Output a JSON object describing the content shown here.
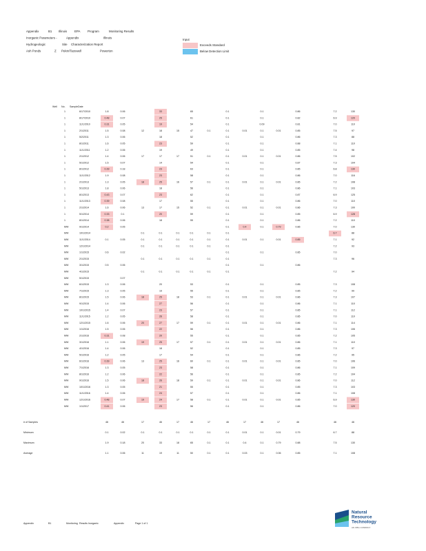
{
  "header": {
    "lines": [
      [
        "Appendix",
        "B1",
        "Illinois",
        "EPA",
        "Program",
        "Monitoring Results"
      ],
      [
        "Inorganic Parameters -",
        "Appendix",
        "Illinois"
      ],
      [
        "Hydrogeologic",
        "Site",
        "Characterization Report"
      ],
      [
        "Ash Ponds",
        "Z",
        "Pekin/Tazewell",
        "Powerton"
      ]
    ],
    "legend": {
      "title": "Input",
      "items": [
        {
          "color": "#f7c6c7",
          "label": "Exceeds Standard"
        },
        {
          "color": "#6cc3ee",
          "label": "Below Detection Limit"
        }
      ]
    }
  },
  "table": {
    "columns": [
      "Well",
      "No.",
      "Sample",
      "Date"
    ],
    "rows": [
      {
        "cells": [
          "1",
          "6/17/2010",
          "1.8",
          "0.06",
          null,
          "33",
          null,
          "65",
          null,
          "0.1",
          null,
          "0.1",
          null,
          "0.86",
          "7.2",
          "130"
        ],
        "hl": [
          5
        ]
      },
      {
        "cells": [
          "1",
          "8/17/2010",
          "0.48",
          "0.07",
          null,
          "25",
          null,
          "61",
          null,
          "0.1",
          null,
          "0.1",
          null,
          "0.82",
          "6.9",
          "120"
        ],
        "hl": [
          2,
          5,
          15
        ]
      },
      {
        "cells": [
          "1",
          "11/1/2010",
          "0.31",
          "0.05",
          null,
          "19",
          null,
          "54",
          null,
          "0.1",
          null,
          "0.09",
          null,
          "0.81",
          "7.0",
          "110"
        ],
        "hl": [
          2,
          5
        ]
      },
      {
        "cells": [
          "1",
          "2/1/2011",
          "1.5",
          "0.08",
          "12",
          "18",
          "15",
          "47",
          "0.1",
          "0.1",
          "0.01",
          "0.1",
          "0.01",
          "0.85",
          "7.5",
          "97"
        ],
        "hl": []
      },
      {
        "cells": [
          "1",
          "5/2/2011",
          "1.3",
          "0.06",
          null,
          "18",
          null,
          "52",
          null,
          "0.1",
          null,
          "0.1",
          null,
          "0.86",
          "7.3",
          "88"
        ],
        "hl": []
      },
      {
        "cells": [
          "1",
          "8/1/2011",
          "1.6",
          "0.05",
          null,
          "23",
          null,
          "59",
          null,
          "0.1",
          null,
          "0.1",
          null,
          "0.88",
          "7.1",
          "110"
        ],
        "hl": [
          5
        ]
      },
      {
        "cells": [
          "1",
          "11/1/2011",
          "1.2",
          "0.06",
          null,
          "19",
          null,
          "49",
          null,
          "0.1",
          null,
          "0.1",
          null,
          "0.85",
          "7.4",
          "98"
        ],
        "hl": []
      },
      {
        "cells": [
          "1",
          "2/1/2012",
          "1.4",
          "0.06",
          "17",
          "17",
          "17",
          "51",
          "0.1",
          "0.1",
          "0.01",
          "0.1",
          "0.01",
          "0.86",
          "7.5",
          "102"
        ],
        "hl": []
      },
      {
        "cells": [
          "1",
          "5/1/2012",
          "1.5",
          "0.07",
          null,
          "14",
          null,
          "54",
          null,
          "0.1",
          null,
          "0.1",
          null,
          "0.87",
          "7.3",
          "104"
        ],
        "hl": []
      },
      {
        "cells": [
          "1",
          "8/1/2012",
          "0.39",
          "0.18",
          null,
          "23",
          null,
          "63",
          null,
          "0.1",
          null,
          "0.1",
          null,
          "0.85",
          "6.8",
          "130"
        ],
        "hl": [
          2,
          5,
          15
        ]
      },
      {
        "cells": [
          "1",
          "11/1/2012",
          "1.9",
          "0.08",
          null,
          "23",
          null,
          "58",
          null,
          "0.1",
          null,
          "0.1",
          null,
          "0.86",
          "7.0",
          "116"
        ],
        "hl": [
          5
        ]
      },
      {
        "cells": [
          "1",
          "2/1/2013",
          "1.3",
          "0.05",
          "18",
          "25",
          "16",
          "57",
          "0.1",
          "0.1",
          "0.01",
          "0.1",
          "0.01",
          "0.85",
          "7.2",
          "108"
        ],
        "hl": [
          4,
          5
        ]
      },
      {
        "cells": [
          "1",
          "5/1/2013",
          "1.8",
          "0.06",
          null,
          "18",
          null,
          "56",
          null,
          "0.1",
          null,
          "0.1",
          null,
          "0.86",
          "7.1",
          "103"
        ],
        "hl": []
      },
      {
        "cells": [
          "1",
          "8/1/2013",
          "0.43",
          "0.07",
          null,
          "23",
          null,
          "62",
          null,
          "0.1",
          null,
          "0.1",
          null,
          "0.87",
          "6.9",
          "125"
        ],
        "hl": [
          2,
          5
        ]
      },
      {
        "cells": [
          "1",
          "11/1/2013",
          "0.39",
          "0.08",
          null,
          "17",
          null,
          "55",
          null,
          "0.1",
          null,
          "0.1",
          null,
          "0.86",
          "7.0",
          "110"
        ],
        "hl": [
          2
        ]
      },
      {
        "cells": [
          "1",
          "2/1/2014",
          "1.6",
          "0.06",
          "13",
          "17",
          "15",
          "52",
          "0.1",
          "0.1",
          "0.01",
          "0.1",
          "0.01",
          "0.86",
          "7.3",
          "100"
        ],
        "hl": []
      },
      {
        "cells": [
          "1",
          "5/1/2014",
          "0.33",
          "0.1",
          null,
          "20",
          null,
          "59",
          null,
          "0.1",
          null,
          "0.1",
          null,
          "0.85",
          "6.9",
          "128"
        ],
        "hl": [
          2,
          5,
          15
        ]
      },
      {
        "cells": [
          "1",
          "8/1/2014",
          "0.38",
          "0.06",
          null,
          "18",
          null,
          "55",
          null,
          "0.1",
          null,
          "0.1",
          null,
          "0.86",
          "7.2",
          "110"
        ],
        "hl": [
          2
        ]
      },
      {
        "cells": [
          "MW",
          "9/1/2014",
          "0.2",
          "0.05",
          null,
          null,
          null,
          null,
          null,
          "0.1",
          "0.4",
          "0.1",
          "0.79",
          "0.86",
          "7.0",
          "130"
        ],
        "hl": [
          2,
          10,
          12
        ]
      },
      {
        "cells": [
          "MW",
          "10/1/2014",
          null,
          null,
          "0.1",
          "0.1",
          "0.1",
          "0.1",
          "0.1",
          "0.1",
          null,
          null,
          null,
          null,
          "6.7",
          "88"
        ],
        "hl": [
          14
        ]
      },
      {
        "cells": [
          "MW",
          "11/1/2014",
          "0.1",
          "0.05",
          "0.1",
          "0.1",
          "0.1",
          "0.1",
          "0.1",
          "0.1",
          "0.01",
          "0.1",
          "0.01",
          "0.85",
          "7.1",
          "92"
        ],
        "hl": [
          13
        ]
      },
      {
        "cells": [
          "MW",
          "12/1/2014",
          null,
          null,
          "0.1",
          "0.1",
          "0.1",
          "0.1",
          "0.1",
          "0.1",
          null,
          null,
          null,
          null,
          "7.2",
          "93"
        ],
        "hl": []
      },
      {
        "cells": [
          "MW",
          "1/1/2015",
          "0.6",
          "0.02",
          null,
          null,
          null,
          null,
          null,
          "0.1",
          null,
          "0.1",
          null,
          "0.85",
          "7.0",
          null
        ],
        "hl": []
      },
      {
        "cells": [
          "MW",
          "2/1/2015",
          null,
          null,
          "0.1",
          "0.1",
          "0.1",
          "0.1",
          "0.1",
          "0.1",
          null,
          null,
          null,
          null,
          "7.3",
          "96"
        ],
        "hl": []
      },
      {
        "cells": [
          "MW",
          "3/1/2015",
          "0.5",
          "0.06",
          null,
          null,
          null,
          null,
          null,
          "0.1",
          null,
          "0.1",
          null,
          "0.86",
          null,
          null
        ],
        "hl": []
      },
      {
        "cells": [
          "MW",
          "4/1/2015",
          null,
          null,
          "0.1",
          "0.1",
          "0.1",
          "0.1",
          "0.1",
          "0.1",
          null,
          null,
          null,
          null,
          "7.2",
          "94"
        ],
        "hl": []
      },
      {
        "cells": [
          "MW",
          "5/1/2015",
          null,
          "0.07",
          null,
          null,
          null,
          null,
          null,
          null,
          null,
          null,
          null,
          null,
          null,
          null
        ],
        "hl": []
      },
      {
        "cells": [
          "MW",
          "6/1/2015",
          "1.3",
          "0.06",
          null,
          "20",
          null,
          "53",
          null,
          "0.1",
          null,
          "0.1",
          null,
          "0.85",
          "7.3",
          "108"
        ],
        "hl": []
      },
      {
        "cells": [
          "MW",
          "7/1/2015",
          "1.3",
          "0.05",
          null,
          "19",
          null,
          "55",
          null,
          "0.1",
          null,
          "0.1",
          null,
          "0.85",
          "7.2",
          "99"
        ],
        "hl": []
      },
      {
        "cells": [
          "MW",
          "8/1/2015",
          "1.5",
          "0.06",
          "18",
          "25",
          "18",
          "53",
          "0.1",
          "0.1",
          "0.01",
          "0.1",
          "0.01",
          "0.86",
          "7.3",
          "107"
        ],
        "hl": [
          4,
          5
        ]
      },
      {
        "cells": [
          "MW",
          "9/1/2015",
          "1.4",
          "0.06",
          null,
          "27",
          null,
          "56",
          null,
          "0.1",
          null,
          "0.1",
          null,
          "0.86",
          "7.1",
          "110"
        ],
        "hl": [
          5
        ]
      },
      {
        "cells": [
          "MW",
          "10/1/2015",
          "1.4",
          "0.07",
          null,
          "23",
          null,
          "57",
          null,
          "0.1",
          null,
          "0.1",
          null,
          "0.85",
          "7.1",
          "112"
        ],
        "hl": [
          5
        ]
      },
      {
        "cells": [
          "MW",
          "11/1/2015",
          "1.2",
          "0.05",
          null,
          "26",
          null,
          "58",
          null,
          "0.1",
          null,
          "0.1",
          null,
          "0.85",
          "7.0",
          "110"
        ],
        "hl": [
          5
        ]
      },
      {
        "cells": [
          "MW",
          "12/1/2015",
          "1.6",
          "0.06",
          "20",
          "27",
          "17",
          "59",
          "0.1",
          "0.1",
          "0.01",
          "0.1",
          "0.01",
          "0.86",
          "7.1",
          "114"
        ],
        "hl": [
          4,
          5
        ]
      },
      {
        "cells": [
          "MW",
          "1/1/2016",
          "1.5",
          "0.06",
          null,
          "22",
          null,
          "56",
          null,
          "0.1",
          null,
          "0.1",
          null,
          "0.86",
          "7.3",
          "106"
        ],
        "hl": [
          5
        ]
      },
      {
        "cells": [
          "MW",
          "2/1/2016",
          "0.31",
          "0.08",
          null,
          "20",
          null,
          "55",
          null,
          "0.1",
          null,
          "0.1",
          null,
          "0.85",
          "7.2",
          "105"
        ],
        "hl": [
          2,
          5
        ]
      },
      {
        "cells": [
          "MW",
          "3/1/2016",
          "1.1",
          "0.06",
          "19",
          "25",
          "17",
          "57",
          "0.1",
          "0.1",
          "0.01",
          "0.1",
          "0.01",
          "0.86",
          "7.1",
          "110"
        ],
        "hl": [
          4,
          5
        ]
      },
      {
        "cells": [
          "MW",
          "4/1/2016",
          "1.4",
          "0.06",
          null,
          "18",
          null,
          "52",
          null,
          "0.1",
          null,
          "0.1",
          null,
          "0.85",
          "7.3",
          "97"
        ],
        "hl": []
      },
      {
        "cells": [
          "MW",
          "5/1/2016",
          "1.2",
          "0.05",
          null,
          "17",
          null,
          "54",
          null,
          "0.1",
          null,
          "0.1",
          null,
          "0.86",
          "7.2",
          "95"
        ],
        "hl": []
      },
      {
        "cells": [
          "MW",
          "6/1/2016",
          "0.39",
          "0.06",
          "13",
          "25",
          "16",
          "60",
          "0.1",
          "0.1",
          "0.01",
          "0.1",
          "0.01",
          "0.85",
          "7.0",
          "106"
        ],
        "hl": [
          2,
          5
        ]
      },
      {
        "cells": [
          "MW",
          "7/1/2016",
          "1.3",
          "0.05",
          null,
          "23",
          null,
          "58",
          null,
          "0.1",
          null,
          "0.1",
          null,
          "0.86",
          "7.1",
          "109"
        ],
        "hl": [
          5
        ]
      },
      {
        "cells": [
          "MW",
          "8/1/2016",
          "1.2",
          "0.06",
          null,
          "22",
          null,
          "56",
          null,
          "0.1",
          null,
          "0.1",
          null,
          "0.85",
          "7.2",
          "104"
        ],
        "hl": [
          5
        ]
      },
      {
        "cells": [
          "MW",
          "9/1/2016",
          "1.5",
          "0.06",
          "18",
          "26",
          "18",
          "59",
          "0.1",
          "0.1",
          "0.01",
          "0.1",
          "0.01",
          "0.86",
          "7.0",
          "112"
        ],
        "hl": [
          4,
          5
        ]
      },
      {
        "cells": [
          "MW",
          "10/1/2016",
          "1.3",
          "0.05",
          null,
          "21",
          null,
          "55",
          null,
          "0.1",
          null,
          "0.1",
          null,
          "0.85",
          "7.3",
          "103"
        ],
        "hl": [
          5
        ]
      },
      {
        "cells": [
          "MW",
          "11/1/2016",
          "1.4",
          "0.06",
          null,
          "24",
          null,
          "57",
          null,
          "0.1",
          null,
          "0.1",
          null,
          "0.86",
          "7.1",
          "108"
        ],
        "hl": [
          5
        ]
      },
      {
        "cells": [
          "MW",
          "12/1/2016",
          "0.48",
          "0.07",
          "19",
          "24",
          "17",
          "58",
          "0.1",
          "0.1",
          "0.01",
          "0.1",
          "0.01",
          "0.85",
          "6.9",
          "130"
        ],
        "hl": [
          2,
          4,
          5,
          15
        ]
      },
      {
        "cells": [
          "MW",
          "1/1/2017",
          "0.41",
          "0.06",
          null,
          "23",
          null,
          "56",
          null,
          "0.1",
          null,
          "0.1",
          null,
          "0.86",
          "7.0",
          "120"
        ],
        "hl": [
          2,
          5,
          15
        ]
      }
    ]
  },
  "summary": {
    "rows": [
      {
        "label": "# of Samples",
        "cells": [
          "46",
          "46",
          "17",
          "46",
          "17",
          "46",
          "17",
          "46",
          "17",
          "46",
          "17",
          "46",
          "46",
          "46"
        ]
      },
      {
        "label": "Minimum",
        "cells": [
          "0.1",
          "0.02",
          "0.1",
          "0.1",
          "0.1",
          "0.1",
          "0.1",
          "0.1",
          "0.01",
          "0.1",
          "0.01",
          "0.79",
          "6.7",
          "88"
        ]
      },
      {
        "label": "Maximum",
        "cells": [
          "1.9",
          "0.18",
          "20",
          "33",
          "18",
          "65",
          "0.1",
          "0.1",
          "0.4",
          "0.1",
          "0.79",
          "0.88",
          "7.5",
          "130"
        ]
      },
      {
        "label": "Average",
        "cells": [
          "1.1",
          "0.06",
          "11",
          "19",
          "11",
          "50",
          "0.1",
          "0.1",
          "0.03",
          "0.1",
          "0.06",
          "0.85",
          "7.1",
          "108"
        ]
      }
    ]
  },
  "footer": {
    "items": [
      "Appendix",
      "B1",
      "Monitoring",
      "Results Inorganic",
      "Appendix",
      "Page 1 of 1"
    ],
    "company": [
      "Natural",
      "Resource",
      "Technology"
    ],
    "tagline": "AN OBG COMPANY"
  }
}
